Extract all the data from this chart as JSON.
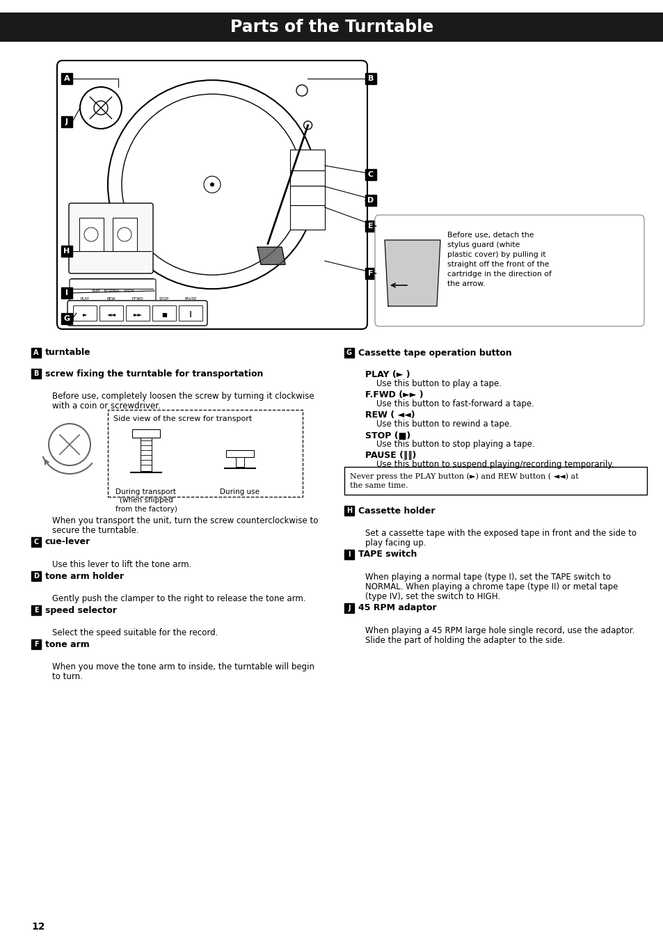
{
  "title": "Parts of the Turntable",
  "title_bg": "#1a1a1a",
  "title_color": "#ffffff",
  "title_fontsize": 17,
  "page_bg": "#ffffff",
  "page_number": "12",
  "left_sections": [
    {
      "label": "A",
      "heading": "turntable",
      "body": [],
      "body_indent": []
    },
    {
      "label": "B",
      "heading": "screw fixing the turntable for transportation",
      "body": [
        "Before use, completely loosen the screw by turning it clockwise",
        "with a coin or screwdriver."
      ],
      "body_indent": [
        true,
        true
      ],
      "has_screw_box": true,
      "after_screw_text": [
        "When you transport the unit, turn the screw counterclockwise to",
        "secure the turntable."
      ]
    },
    {
      "label": "C",
      "heading": "cue-lever",
      "body": [
        "Use this lever to lift the tone arm."
      ],
      "body_indent": [
        true
      ]
    },
    {
      "label": "D",
      "heading": "tone arm holder",
      "body": [
        "Gently push the clamper to the right to release the tone arm."
      ],
      "body_indent": [
        true
      ]
    },
    {
      "label": "E",
      "heading": "speed selector",
      "body": [
        "Select the speed suitable for the record."
      ],
      "body_indent": [
        true
      ]
    },
    {
      "label": "F",
      "heading": "tone arm",
      "body": [
        "When you move the tone arm to inside, the turntable will begin",
        "to turn."
      ],
      "body_indent": [
        true,
        true
      ]
    }
  ],
  "right_sections": [
    {
      "label": "G",
      "heading": "Cassette tape operation button",
      "subsections": [
        {
          "sub_head": "PLAY (► )",
          "sub_body": "Use this button to play a tape."
        },
        {
          "sub_head": "F.FWD (►► )",
          "sub_body": "Use this button to fast-forward a tape."
        },
        {
          "sub_head": "REW ( ◄◄)",
          "sub_body": "Use this button to rewind a tape."
        },
        {
          "sub_head": "STOP (■)",
          "sub_body": "Use this button to stop playing a tape."
        },
        {
          "sub_head": "PAUSE (‖‖)",
          "sub_body": "Use this button to suspend playing/recording temporarily."
        }
      ],
      "note": "Never press the PLAY button (►) and REW button ( ◄◄) at\nthe same time."
    },
    {
      "label": "H",
      "heading": "Cassette holder",
      "body": [
        "Set a cassette tape with the exposed tape in front and the side to",
        "play facing up."
      ],
      "body_indent": [
        true,
        true
      ]
    },
    {
      "label": "I",
      "heading": "TAPE switch",
      "body": [
        "When playing a normal tape (type I), set the TAPE switch to",
        "NORMAL. When playing a chrome tape (type II) or metal tape",
        "(type IV), set the switch to HIGH."
      ],
      "body_indent": [
        true,
        true,
        true
      ]
    },
    {
      "label": "J",
      "heading": "45 RPM adaptor",
      "body": [
        "When playing a 45 RPM large hole single record, use the adaptor.",
        "Slide the part of holding the adapter to the side."
      ],
      "body_indent": [
        true,
        true
      ]
    }
  ],
  "stylus_note": "Before use, detach the\nstylus guard (white\nplastic cover) by pulling it\nstraight off the front of the\ncartridge in the direction of\nthe arrow.",
  "screw_box_title": "Side view of the screw for transport",
  "screw_label1": "During transport\n(when shipped\nfrom the factory)",
  "screw_label2": "During use"
}
